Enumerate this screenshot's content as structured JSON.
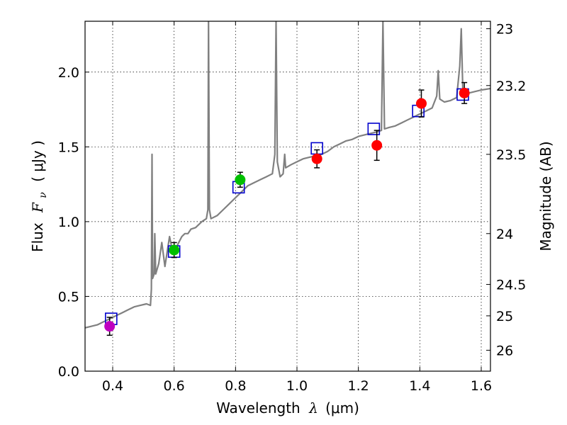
{
  "chart_data": {
    "type": "scatter",
    "xlabel_prefix": "Wavelength",
    "xlabel_math": "λ",
    "xlabel_unit": "(μm)",
    "ylabel_prefix": "Flux",
    "ylabel_math": "F",
    "ylabel_sub": "ν",
    "ylabel_unit": "( μJy )",
    "ylabel_right": "Magnitude (AB)",
    "xlim": [
      0.31,
      1.63
    ],
    "ylim": [
      0.0,
      2.34
    ],
    "grid": true,
    "x_ticks": [
      0.4,
      0.6,
      0.8,
      1.0,
      1.2,
      1.4,
      1.6
    ],
    "x_tick_labels": [
      "0.4",
      "0.6",
      "0.8",
      "1.0",
      "1.2",
      "1.4",
      "1.6"
    ],
    "y_ticks": [
      0.0,
      0.5,
      1.0,
      1.5,
      2.0
    ],
    "y_tick_labels": [
      "0.0",
      "0.5",
      "1.0",
      "1.5",
      "2.0"
    ],
    "right_ticks": [
      {
        "label": "23",
        "flux": 2.29
      },
      {
        "label": "23.2",
        "flux": 1.91
      },
      {
        "label": "23.5",
        "flux": 1.45
      },
      {
        "label": "24",
        "flux": 0.92
      },
      {
        "label": "24.5",
        "flux": 0.58
      },
      {
        "label": "25",
        "flux": 0.37
      },
      {
        "label": "26",
        "flux": 0.14
      }
    ],
    "model_spectrum": {
      "color": "#808080",
      "points": [
        [
          0.31,
          0.29
        ],
        [
          0.33,
          0.3
        ],
        [
          0.35,
          0.31
        ],
        [
          0.37,
          0.33
        ],
        [
          0.39,
          0.35
        ],
        [
          0.41,
          0.37
        ],
        [
          0.43,
          0.39
        ],
        [
          0.45,
          0.41
        ],
        [
          0.47,
          0.43
        ],
        [
          0.49,
          0.44
        ],
        [
          0.51,
          0.45
        ],
        [
          0.523,
          0.44
        ],
        [
          0.526,
          0.55
        ],
        [
          0.528,
          1.45
        ],
        [
          0.53,
          0.62
        ],
        [
          0.535,
          0.65
        ],
        [
          0.537,
          0.92
        ],
        [
          0.54,
          0.65
        ],
        [
          0.55,
          0.72
        ],
        [
          0.56,
          0.86
        ],
        [
          0.57,
          0.7
        ],
        [
          0.585,
          0.9
        ],
        [
          0.595,
          0.8
        ],
        [
          0.61,
          0.84
        ],
        [
          0.625,
          0.9
        ],
        [
          0.635,
          0.92
        ],
        [
          0.645,
          0.92
        ],
        [
          0.655,
          0.95
        ],
        [
          0.67,
          0.96
        ],
        [
          0.69,
          1.0
        ],
        [
          0.705,
          1.02
        ],
        [
          0.71,
          1.08
        ],
        [
          0.712,
          2.34
        ],
        [
          0.715,
          1.08
        ],
        [
          0.72,
          1.02
        ],
        [
          0.74,
          1.04
        ],
        [
          0.76,
          1.08
        ],
        [
          0.78,
          1.12
        ],
        [
          0.8,
          1.16
        ],
        [
          0.82,
          1.2
        ],
        [
          0.84,
          1.24
        ],
        [
          0.86,
          1.26
        ],
        [
          0.88,
          1.28
        ],
        [
          0.9,
          1.3
        ],
        [
          0.92,
          1.32
        ],
        [
          0.928,
          1.45
        ],
        [
          0.932,
          2.34
        ],
        [
          0.936,
          1.4
        ],
        [
          0.945,
          1.3
        ],
        [
          0.955,
          1.32
        ],
        [
          0.96,
          1.45
        ],
        [
          0.963,
          1.36
        ],
        [
          0.98,
          1.38
        ],
        [
          1.0,
          1.4
        ],
        [
          1.02,
          1.42
        ],
        [
          1.04,
          1.43
        ],
        [
          1.06,
          1.44
        ],
        [
          1.08,
          1.45
        ],
        [
          1.1,
          1.47
        ],
        [
          1.12,
          1.5
        ],
        [
          1.14,
          1.52
        ],
        [
          1.16,
          1.54
        ],
        [
          1.18,
          1.55
        ],
        [
          1.2,
          1.57
        ],
        [
          1.22,
          1.58
        ],
        [
          1.24,
          1.59
        ],
        [
          1.26,
          1.6
        ],
        [
          1.275,
          1.61
        ],
        [
          1.28,
          2.34
        ],
        [
          1.285,
          1.62
        ],
        [
          1.3,
          1.63
        ],
        [
          1.32,
          1.64
        ],
        [
          1.34,
          1.66
        ],
        [
          1.36,
          1.68
        ],
        [
          1.38,
          1.7
        ],
        [
          1.4,
          1.72
        ],
        [
          1.42,
          1.74
        ],
        [
          1.44,
          1.76
        ],
        [
          1.455,
          1.84
        ],
        [
          1.46,
          2.01
        ],
        [
          1.465,
          1.82
        ],
        [
          1.48,
          1.8
        ],
        [
          1.5,
          1.81
        ],
        [
          1.52,
          1.83
        ],
        [
          1.53,
          2.04
        ],
        [
          1.535,
          2.29
        ],
        [
          1.54,
          1.88
        ],
        [
          1.56,
          1.86
        ],
        [
          1.58,
          1.87
        ],
        [
          1.6,
          1.88
        ],
        [
          1.63,
          1.89
        ]
      ]
    },
    "model_photometry": {
      "marker": "square",
      "color": "#0000cc",
      "points": [
        [
          0.395,
          0.35
        ],
        [
          0.6,
          0.8
        ],
        [
          0.81,
          1.23
        ],
        [
          1.065,
          1.49
        ],
        [
          1.25,
          1.62
        ],
        [
          1.395,
          1.74
        ],
        [
          1.54,
          1.85
        ]
      ]
    },
    "observed": [
      {
        "x": 0.39,
        "y": 0.3,
        "err": 0.06,
        "color": "#bf00bf"
      },
      {
        "x": 0.6,
        "y": 0.81,
        "err": 0.05,
        "color": "#00bf00"
      },
      {
        "x": 0.815,
        "y": 1.28,
        "err": 0.05,
        "color": "#00bf00"
      },
      {
        "x": 1.065,
        "y": 1.42,
        "err": 0.06,
        "color": "#ff0000"
      },
      {
        "x": 1.26,
        "y": 1.51,
        "err": 0.1,
        "color": "#ff0000"
      },
      {
        "x": 1.405,
        "y": 1.79,
        "err": 0.09,
        "color": "#ff0000"
      },
      {
        "x": 1.545,
        "y": 1.86,
        "err": 0.07,
        "color": "#ff0000"
      }
    ]
  }
}
